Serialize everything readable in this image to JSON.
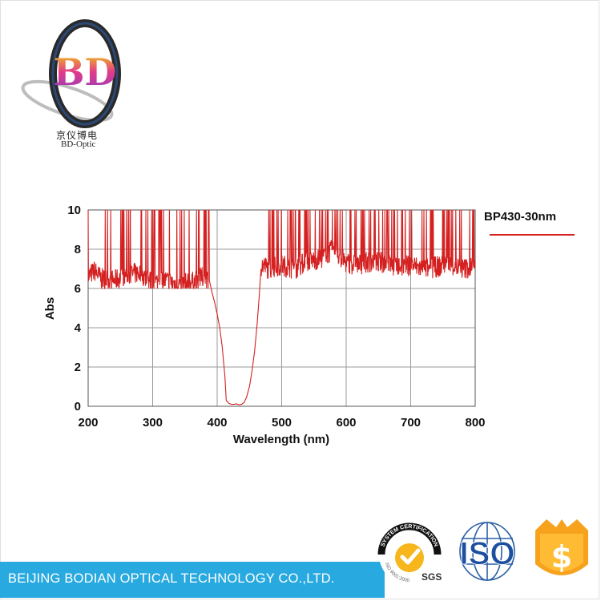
{
  "brand": {
    "logo_text": "BD",
    "name_cn": "京仪博电",
    "name_en": "BD-Optic"
  },
  "footer": {
    "company": "BEIJING BODIAN OPTICAL TECHNOLOGY CO.,LTD."
  },
  "certifications": {
    "sgs_ring_text": "SYSTEM CERTIFICATION",
    "sgs_bottom_text": "ISO 9001:2000",
    "sgs_label": "SGS",
    "iso_label": "ISO",
    "shield_symbol": "$"
  },
  "colors": {
    "series": "#d42020",
    "footer": "#28a9df",
    "grid": "#9a9a9a"
  },
  "chart_data": {
    "type": "line",
    "title": "",
    "xlabel": "Wavelength (nm)",
    "ylabel": "Abs",
    "xlim": [
      200,
      800
    ],
    "ylim": [
      0,
      10
    ],
    "xticks": [
      200,
      300,
      400,
      500,
      600,
      700,
      800
    ],
    "yticks": [
      0,
      2,
      4,
      6,
      8,
      10
    ],
    "grid": true,
    "legend_position": "right",
    "series": [
      {
        "name": "BP430-30nm",
        "note_noise": "measurement-limited noise between 6 and 10 Abs outside the passband",
        "x": [
          200,
          210,
          220,
          240,
          260,
          280,
          300,
          320,
          340,
          360,
          380,
          388,
          392,
          396,
          400,
          404,
          408,
          412,
          414,
          418,
          422,
          426,
          430,
          434,
          438,
          442,
          446,
          450,
          454,
          458,
          462,
          465,
          468,
          470,
          480,
          500,
          520,
          540,
          560,
          580,
          600,
          620,
          640,
          660,
          680,
          700,
          720,
          740,
          760,
          780,
          800
        ],
        "y": [
          6.6,
          6.9,
          6.5,
          6.4,
          6.7,
          6.8,
          6.3,
          6.4,
          6.2,
          6.3,
          6.6,
          6.4,
          5.8,
          5.3,
          4.7,
          4.0,
          3.0,
          1.5,
          0.3,
          0.15,
          0.1,
          0.1,
          0.12,
          0.08,
          0.1,
          0.2,
          0.5,
          1.0,
          1.8,
          2.8,
          4.2,
          5.5,
          7.0,
          7.2,
          7.0,
          7.2,
          7.0,
          7.4,
          7.5,
          8.0,
          7.3,
          7.2,
          7.4,
          7.3,
          7.1,
          7.2,
          7.0,
          7.1,
          7.2,
          7.0,
          7.1
        ]
      }
    ]
  }
}
